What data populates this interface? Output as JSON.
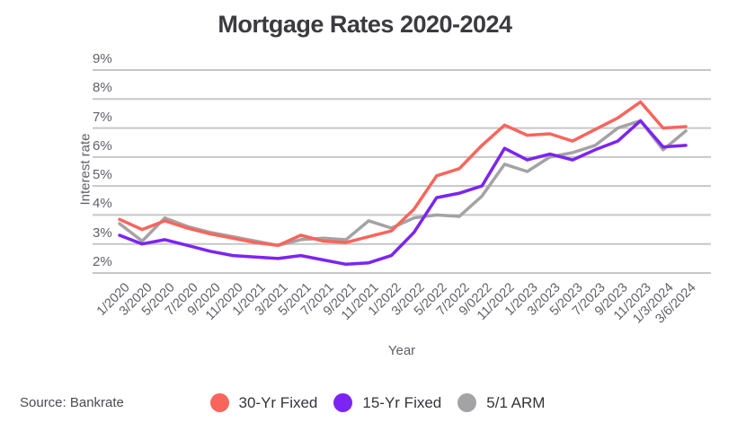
{
  "title": "Mortgage Rates 2020-2024",
  "source": "Source: Bankrate",
  "colors": {
    "background": "#ffffff",
    "gridline": "#c7c7c7",
    "title_text": "#3b3b3f",
    "axis_text": "#606069",
    "legend_text": "#35353a",
    "series_30yr": "#f9655b",
    "series_15yr": "#7c24f3",
    "series_arm": "#a5a2a6"
  },
  "chart_data": {
    "type": "line",
    "title": "Mortgage Rates 2020-2024",
    "xlabel": "Year",
    "ylabel": "Interest rate",
    "ylim": [
      2,
      9
    ],
    "grid": "horizontal",
    "legend_position": "bottom-center",
    "y_tick_values": [
      9,
      8,
      7,
      6,
      5,
      4,
      3,
      2
    ],
    "y_tick_labels": [
      "9%",
      "8%",
      "7%",
      "6%",
      "5%",
      "4%",
      "3%",
      "2%"
    ],
    "categories": [
      "1/2020",
      "3/2020",
      "5/2020",
      "7/2020",
      "9/2020",
      "11/2020",
      "1/2021",
      "3/2021",
      "5/2021",
      "7/2021",
      "9/2021",
      "11/2021",
      "1/2022",
      "3/2022",
      "5/2022",
      "7/2022",
      "9/0222",
      "11/2022",
      "1/2023",
      "3/2023",
      "5/2023",
      "7/2023",
      "9/2023",
      "11/2023",
      "1/3/2024",
      "3/6/2024"
    ],
    "series": [
      {
        "name": "30-Yr Fixed",
        "color": "#f9655b",
        "values": [
          3.85,
          3.5,
          3.8,
          3.55,
          3.35,
          3.2,
          3.05,
          2.95,
          3.3,
          3.1,
          3.05,
          3.25,
          3.45,
          4.2,
          5.35,
          5.6,
          6.4,
          7.1,
          6.75,
          6.8,
          6.55,
          6.95,
          7.35,
          7.9,
          7.0,
          7.05
        ]
      },
      {
        "name": "15-Yr Fixed",
        "color": "#7c24f3",
        "values": [
          3.3,
          3.0,
          3.15,
          2.95,
          2.75,
          2.6,
          2.55,
          2.5,
          2.6,
          2.45,
          2.3,
          2.35,
          2.6,
          3.4,
          4.6,
          4.75,
          5.0,
          6.3,
          5.9,
          6.1,
          5.9,
          6.25,
          6.55,
          7.25,
          6.35,
          6.4
        ]
      },
      {
        "name": "5/1 ARM",
        "color": "#a5a2a6",
        "values": [
          3.7,
          3.1,
          3.9,
          3.6,
          3.4,
          3.25,
          3.1,
          2.95,
          3.15,
          3.2,
          3.15,
          3.8,
          3.55,
          3.9,
          4.0,
          3.95,
          4.65,
          5.75,
          5.5,
          6.0,
          6.15,
          6.4,
          7.0,
          7.25,
          6.25,
          6.9
        ]
      }
    ]
  }
}
